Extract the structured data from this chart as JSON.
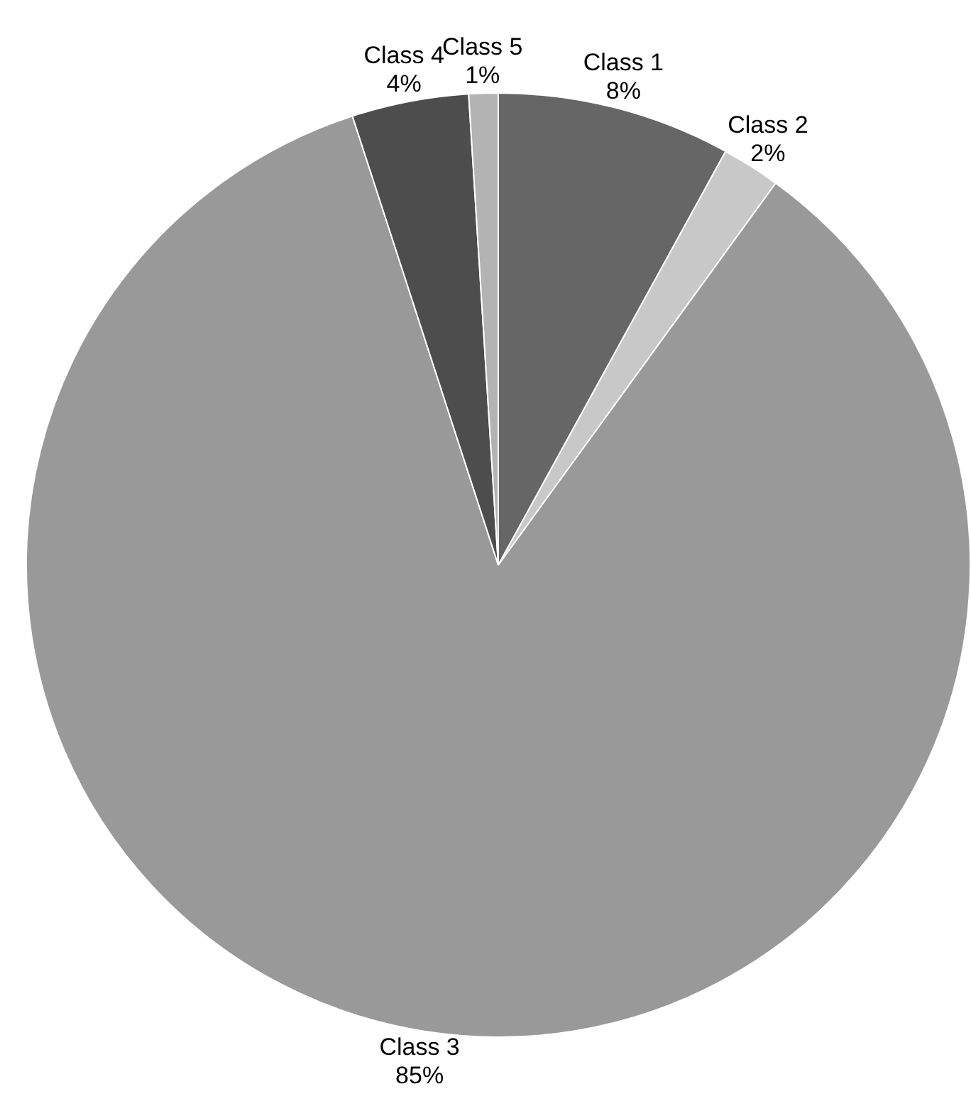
{
  "chart_data": {
    "type": "pie",
    "categories": [
      "Class 1",
      "Class 2",
      "Class 3",
      "Class 4",
      "Class 5"
    ],
    "values": [
      8,
      2,
      85,
      4,
      1
    ],
    "value_labels": [
      "8%",
      "2%",
      "85%",
      "4%",
      "1%"
    ],
    "colors": [
      "#666666",
      "#c8c8c8",
      "#999999",
      "#4d4d4d",
      "#b3b3b3"
    ],
    "legend": false
  }
}
